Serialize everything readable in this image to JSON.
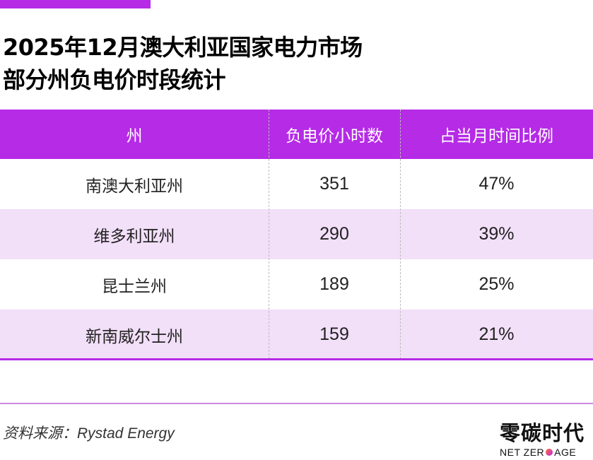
{
  "title": {
    "line1": "2025年12月澳大利亚国家电力市场",
    "line2": "部分州负电价时段统计"
  },
  "colors": {
    "accent": "#b52be6",
    "row_alt": "#f2dff8"
  },
  "chart_data": {
    "type": "table",
    "title": "2025年12月澳大利亚国家电力市场部分州负电价时段统计",
    "columns": [
      "州",
      "负电价小时数",
      "占当月时间比例"
    ],
    "rows": [
      [
        "南澳大利亚州",
        "351",
        "47%"
      ],
      [
        "维多利亚州",
        "290",
        "39%"
      ],
      [
        "昆士兰州",
        "189",
        "25%"
      ],
      [
        "新南威尔士州",
        "159",
        "21%"
      ]
    ]
  },
  "source": "资料来源：Rystad Energy",
  "logo": {
    "cn": "零碳时代",
    "en_left": "NET ZER",
    "en_right": "AGE"
  }
}
